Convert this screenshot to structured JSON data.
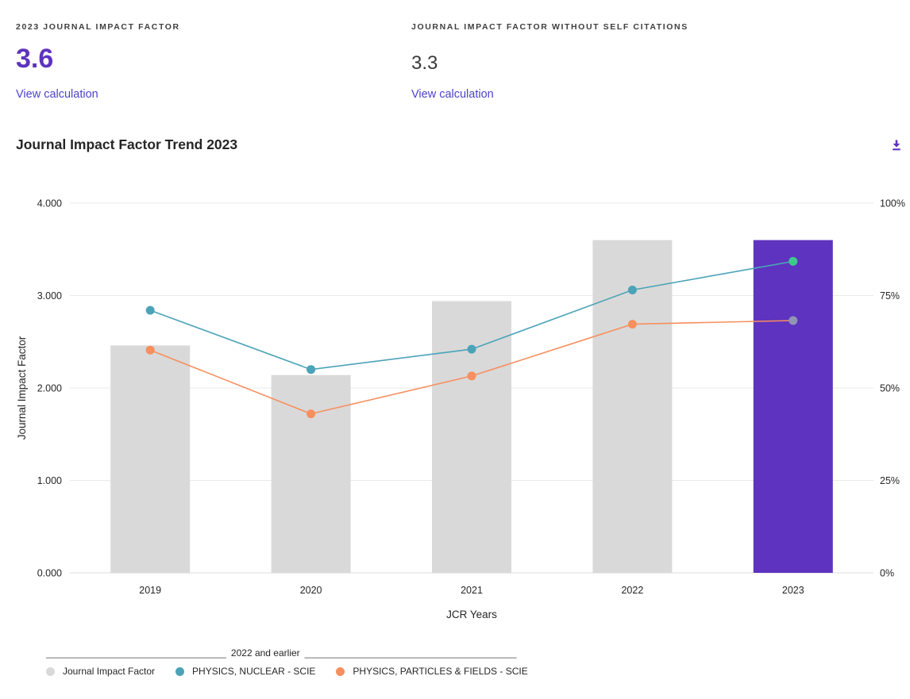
{
  "stats": {
    "jif": {
      "label": "2023 JOURNAL IMPACT FACTOR",
      "value": "3.6",
      "link": "View calculation"
    },
    "jif_no_self": {
      "label": "JOURNAL IMPACT FACTOR WITHOUT SELF CITATIONS",
      "value": "3.3",
      "link": "View calculation"
    }
  },
  "chart": {
    "title": "Journal Impact Factor Trend 2023",
    "download_icon": "download-icon"
  },
  "chart_data": {
    "type": "bar",
    "title": "Journal Impact Factor Trend 2023",
    "categories": [
      "2019",
      "2020",
      "2021",
      "2022",
      "2023"
    ],
    "bars": {
      "name": "Journal Impact Factor",
      "values": [
        2.46,
        2.14,
        2.94,
        3.6,
        3.6
      ],
      "default_color": "#D9D9D9",
      "highlight_color": "#5E33BF",
      "highlight_index": 4
    },
    "lines": [
      {
        "name": "PHYSICS, NUCLEAR - SCIE",
        "values": [
          2.84,
          2.2,
          2.42,
          3.06,
          3.37
        ],
        "percent_values": [
          71,
          55,
          60.5,
          76.5,
          84.3
        ],
        "color": "#4BA3B8",
        "last_point_color": "#3EC98C"
      },
      {
        "name": "PHYSICS, PARTICLES & FIELDS - SCIE",
        "values": [
          2.41,
          1.72,
          2.13,
          2.69,
          2.73
        ],
        "percent_values": [
          60.3,
          43,
          53.3,
          67.3,
          68.3
        ],
        "color": "#F78F5E",
        "last_point_color": "#9095B4"
      }
    ],
    "y_left": {
      "label": "Journal Impact Factor",
      "ticks": [
        "0.000",
        "1.000",
        "2.000",
        "3.000",
        "4.000"
      ],
      "range": [
        0,
        4
      ]
    },
    "y_right": {
      "ticks": [
        "0%",
        "25%",
        "50%",
        "75%",
        "100%"
      ],
      "range": [
        0,
        100
      ]
    },
    "xlabel": "JCR Years",
    "grid": true,
    "legend_position": "bottom"
  },
  "legend": {
    "divider_left": "__________________________________",
    "divider_label": "2022 and earlier",
    "divider_right": "________________________________________",
    "items": [
      {
        "label": "Journal Impact Factor",
        "color": "#D9D9D9"
      },
      {
        "label": "PHYSICS, NUCLEAR - SCIE",
        "color": "#4BA3B8"
      },
      {
        "label": "PHYSICS, PARTICLES & FIELDS - SCIE",
        "color": "#F78F5E"
      }
    ]
  },
  "colors": {
    "accent_purple": "#5E33BF",
    "link": "#4C43CE",
    "bar_gray": "#D9D9D9",
    "grid": "#E8E8E8",
    "nuclear_teal": "#4BA3B8",
    "particles_orange": "#F78F5E",
    "latest_green": "#3EC98C",
    "latest_gray": "#9095B4"
  }
}
